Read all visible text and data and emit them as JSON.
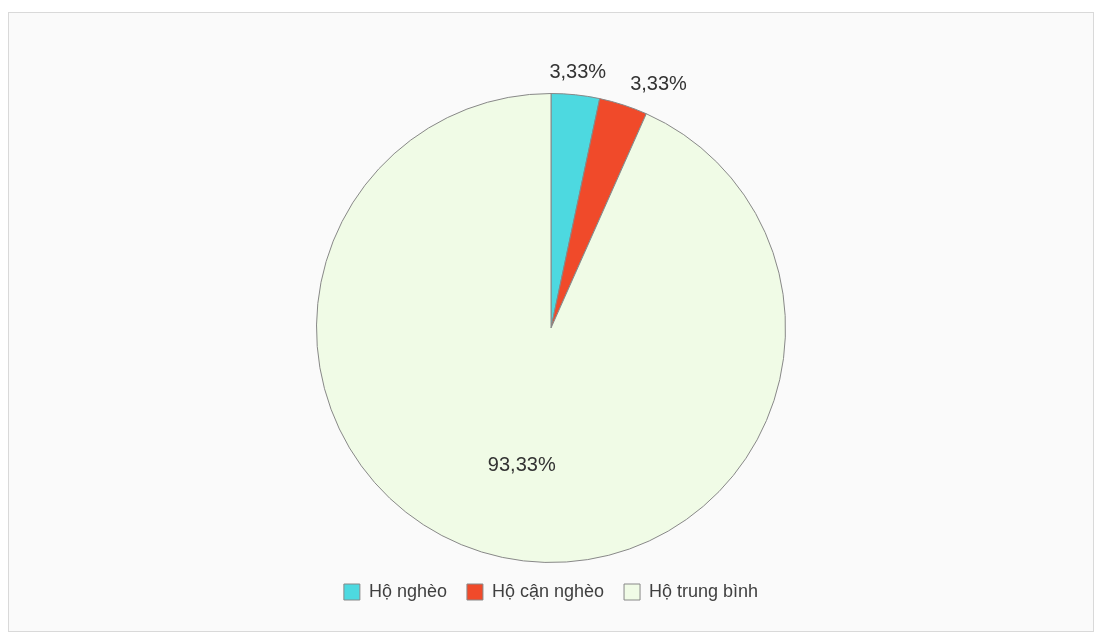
{
  "chart_data": {
    "type": "pie",
    "categories": [
      "Hộ nghèo",
      "Hộ cận nghèo",
      "Hộ trung bình"
    ],
    "values": [
      3.33,
      3.33,
      93.33
    ],
    "colors": [
      "#4dd9e0",
      "#f04a2a",
      "#f0fbe6"
    ],
    "value_labels": [
      "3,33%",
      "3,33%",
      "93,33%"
    ],
    "legend": "bottom"
  }
}
